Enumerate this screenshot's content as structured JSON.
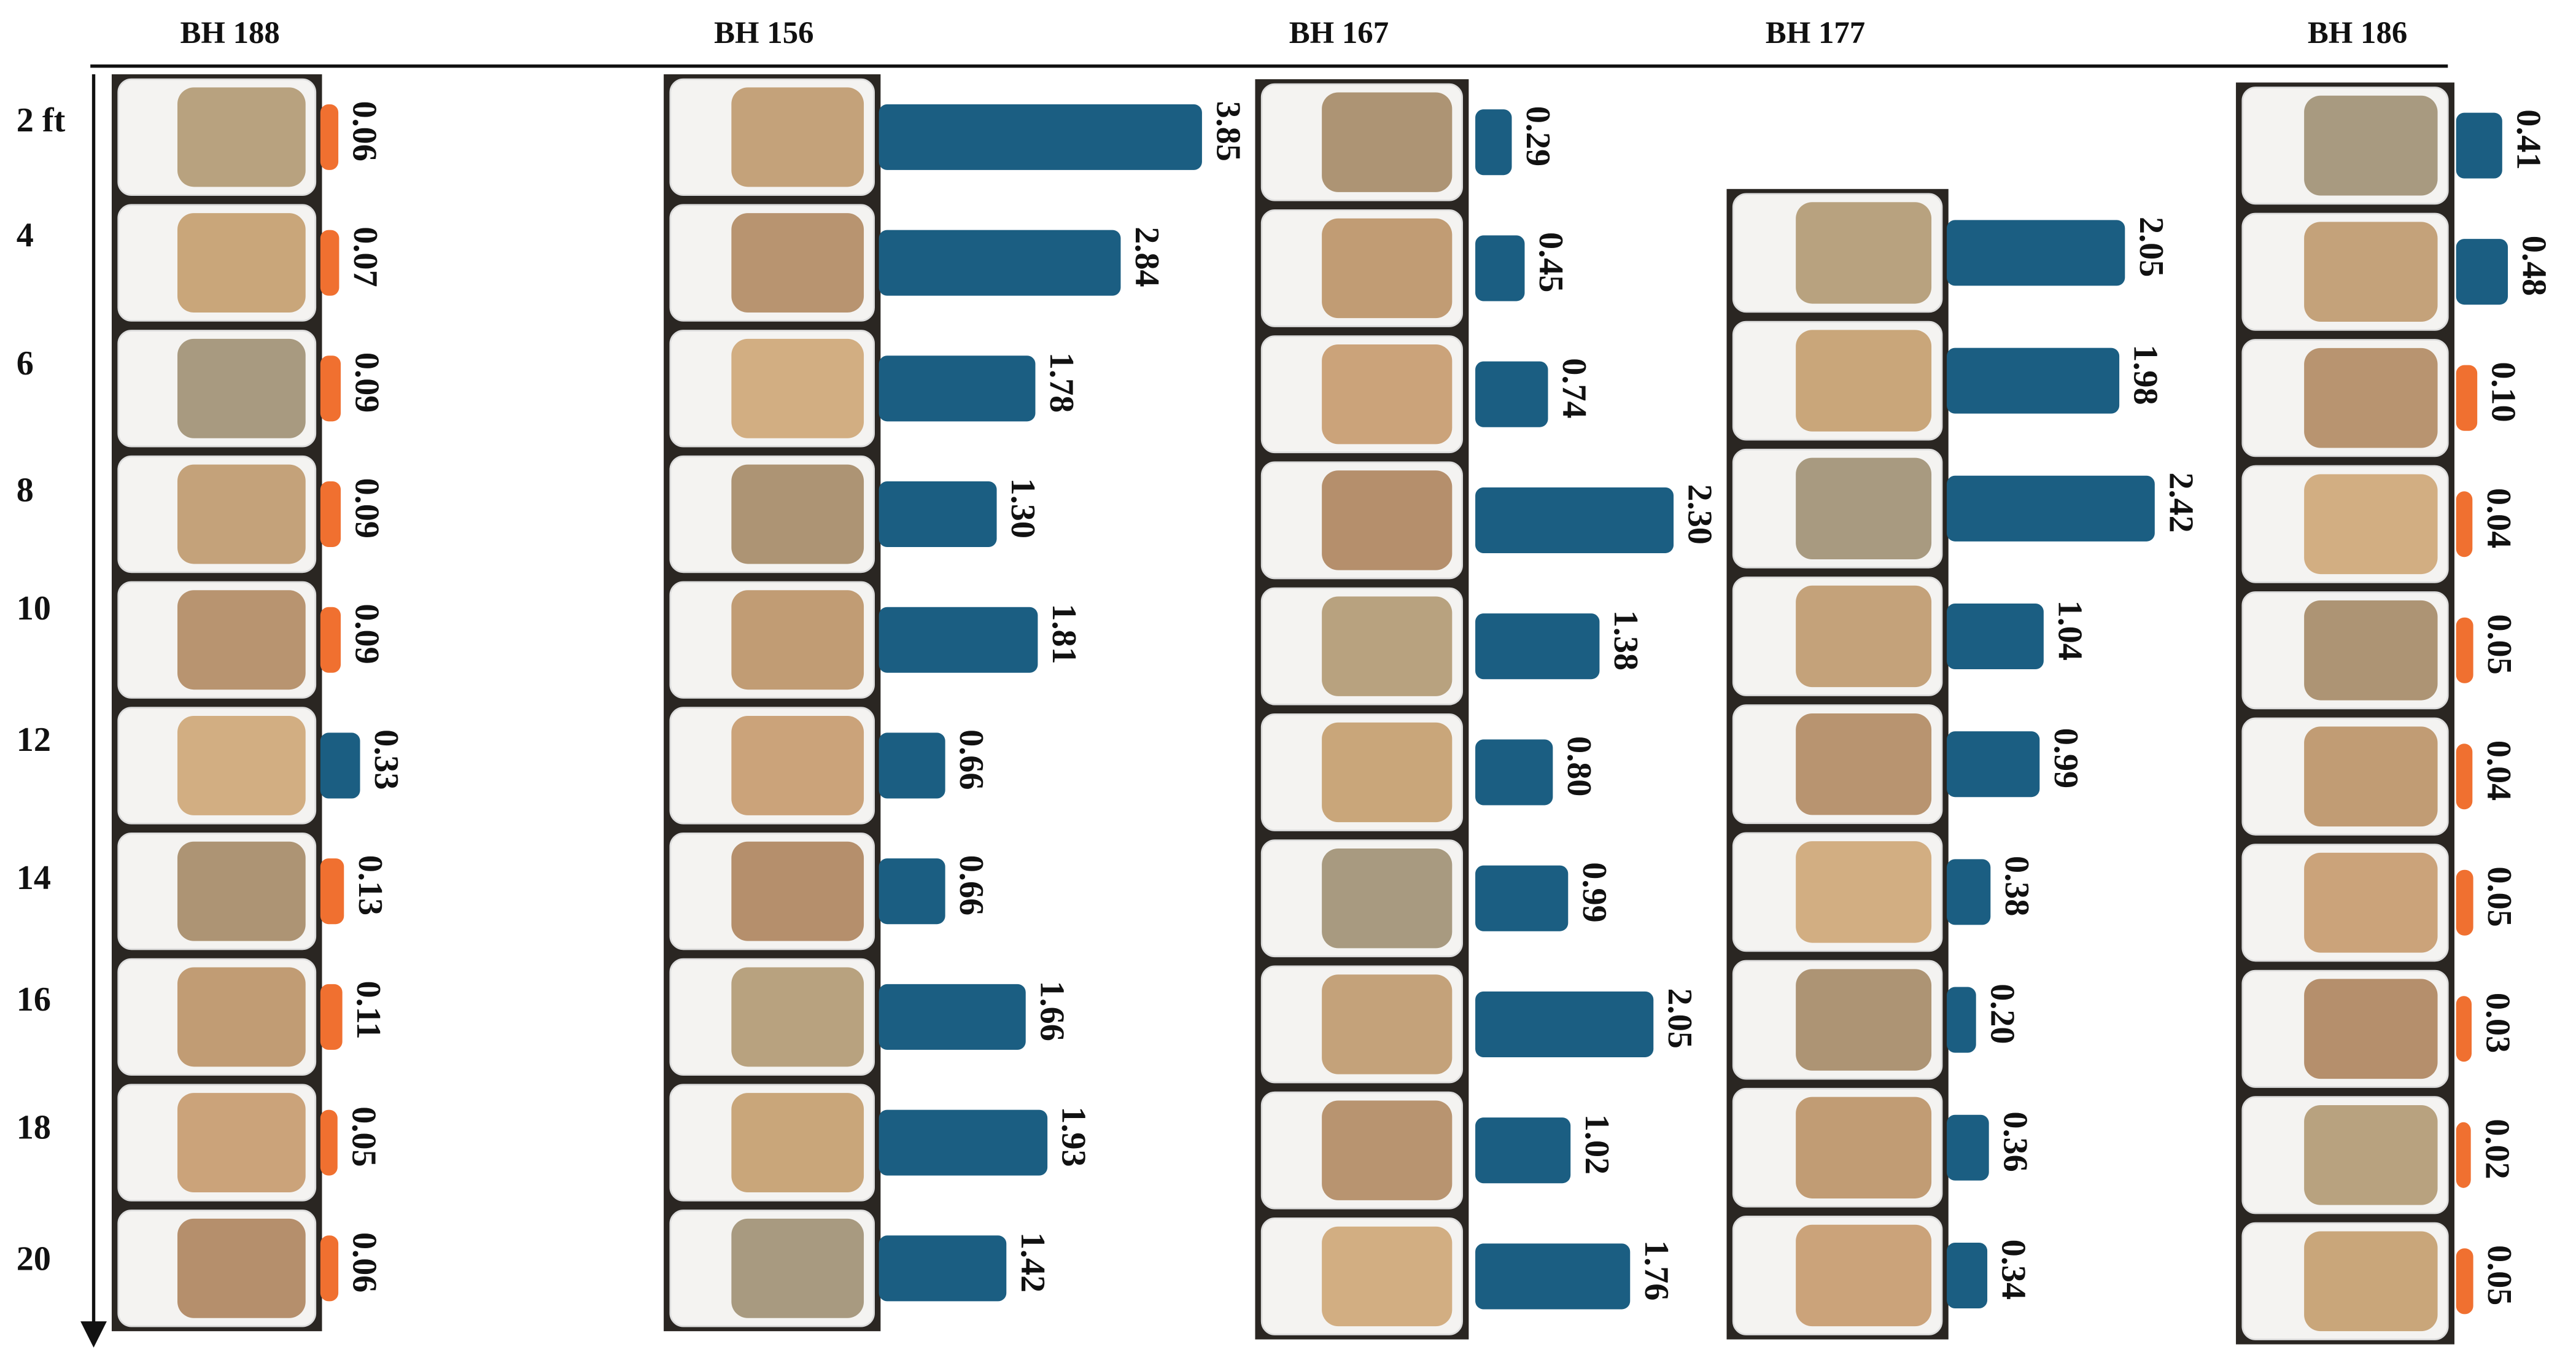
{
  "chart_data": {
    "type": "bar",
    "categories": [
      "2 ft",
      "4",
      "6",
      "8",
      "10",
      "12",
      "14",
      "16",
      "18",
      "20"
    ],
    "series": [
      {
        "name": "BH 188",
        "values": [
          0.06,
          0.07,
          0.09,
          0.09,
          0.09,
          0.33,
          0.13,
          0.11,
          0.05,
          0.06
        ],
        "value_labels": [
          "0.06",
          "0.07",
          "0.09",
          "0.09",
          "0.09",
          "0.33",
          "0.13",
          "0.11",
          "0.05",
          "0.06"
        ],
        "colors": [
          "#f07030",
          "#f07030",
          "#f07030",
          "#f07030",
          "#f07030",
          "#1b5e82",
          "#f07030",
          "#f07030",
          "#f07030",
          "#f07030"
        ]
      },
      {
        "name": "BH 156",
        "values": [
          3.85,
          2.84,
          1.78,
          1.3,
          1.81,
          0.66,
          0.66,
          1.66,
          1.93,
          1.42
        ],
        "value_labels": [
          "3.85",
          "2.84",
          "1.78",
          "1.30",
          "1.81",
          "0.66",
          "0.66",
          "1.66",
          "1.93",
          "1.42"
        ],
        "colors": [
          "#1b5e82",
          "#1b5e82",
          "#1b5e82",
          "#1b5e82",
          "#1b5e82",
          "#1b5e82",
          "#1b5e82",
          "#1b5e82",
          "#1b5e82",
          "#1b5e82"
        ]
      },
      {
        "name": "BH 167",
        "values": [
          0.29,
          0.45,
          0.74,
          2.3,
          1.38,
          0.8,
          0.99,
          2.05,
          1.02,
          1.76
        ],
        "value_labels": [
          "0.29",
          "0.45",
          "0.74",
          "2.30",
          "1.38",
          "0.80",
          "0.99",
          "2.05",
          "1.02",
          "1.76"
        ],
        "colors": [
          "#1b5e82",
          "#1b5e82",
          "#1b5e82",
          "#1b5e82",
          "#1b5e82",
          "#1b5e82",
          "#1b5e82",
          "#1b5e82",
          "#1b5e82",
          "#1b5e82"
        ]
      },
      {
        "name": "BH 177",
        "values": [
          null,
          2.05,
          1.98,
          2.42,
          1.04,
          0.99,
          0.38,
          0.2,
          0.36,
          0.34
        ],
        "value_labels": [
          null,
          "2.05",
          "1.98",
          "2.42",
          "1.04",
          "0.99",
          "0.38",
          "0.20",
          "0.36",
          "0.34"
        ],
        "colors": [
          null,
          "#1b5e82",
          "#1b5e82",
          "#1b5e82",
          "#1b5e82",
          "#1b5e82",
          "#1b5e82",
          "#1b5e82",
          "#1b5e82",
          "#1b5e82"
        ]
      },
      {
        "name": "BH 186",
        "values": [
          0.41,
          0.48,
          0.1,
          0.04,
          0.05,
          0.04,
          0.05,
          0.03,
          0.02,
          0.05
        ],
        "value_labels": [
          "0.41",
          "0.48",
          "0.10",
          "0.04",
          "0.05",
          "0.04",
          "0.05",
          "0.03",
          "0.02",
          "0.05"
        ],
        "colors": [
          "#1b5e82",
          "#1b5e82",
          "#f07030",
          "#f07030",
          "#f07030",
          "#f07030",
          "#f07030",
          "#f07030",
          "#f07030",
          "#f07030"
        ]
      }
    ]
  }
}
